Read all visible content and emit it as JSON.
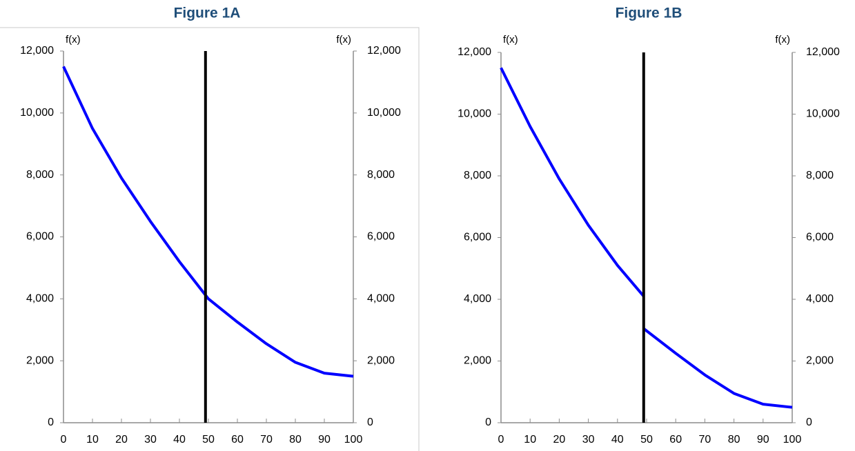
{
  "chart_data": [
    {
      "type": "line",
      "title": "Figure 1A",
      "y_label": "f(x)",
      "y2_label": "f(x)",
      "x": [
        0,
        10,
        20,
        30,
        40,
        50,
        60,
        70,
        80,
        90,
        100
      ],
      "series": [
        {
          "color": "#0000ff",
          "values": [
            11500,
            9500,
            7900,
            6500,
            5200,
            4000,
            3250,
            2550,
            1950,
            1600,
            1500
          ]
        }
      ],
      "vertical_line": {
        "x": 49,
        "color": "#000000"
      },
      "xlim": [
        0,
        100
      ],
      "xticks": [
        0,
        10,
        20,
        30,
        40,
        50,
        60,
        70,
        80,
        90,
        100
      ],
      "ylim": [
        0,
        12000
      ],
      "yticks": [
        0,
        {
          "value": 2000,
          "label": "2,000"
        },
        {
          "value": 4000,
          "label": "4,000"
        },
        {
          "value": 6000,
          "label": "6,000"
        },
        {
          "value": 8000,
          "label": "8,000"
        },
        {
          "value": 10000,
          "label": "10,000"
        },
        {
          "value": 12000,
          "label": "12,000"
        }
      ],
      "frame": true
    },
    {
      "type": "line",
      "title": "Figure 1B",
      "y_label": "f(x)",
      "y2_label": "f(x)",
      "x": [
        0,
        10,
        20,
        30,
        40,
        49,
        49,
        49,
        60,
        70,
        80,
        90,
        100
      ],
      "series": [
        {
          "color": "#0000ff",
          "values": [
            11500,
            9600,
            7900,
            6400,
            5100,
            4100,
            null,
            3050,
            2250,
            1550,
            950,
            600,
            500
          ]
        }
      ],
      "vertical_line": {
        "x": 49,
        "color": "#000000"
      },
      "xlim": [
        0,
        100
      ],
      "xticks": [
        0,
        10,
        20,
        30,
        40,
        50,
        60,
        70,
        80,
        90,
        100
      ],
      "ylim": [
        0,
        12000
      ],
      "yticks": [
        0,
        {
          "value": 2000,
          "label": "2,000"
        },
        {
          "value": 4000,
          "label": "4,000"
        },
        {
          "value": 6000,
          "label": "6,000"
        },
        {
          "value": 8000,
          "label": "8,000"
        },
        {
          "value": 10000,
          "label": "10,000"
        },
        {
          "value": 12000,
          "label": "12,000"
        }
      ],
      "frame": false
    }
  ]
}
